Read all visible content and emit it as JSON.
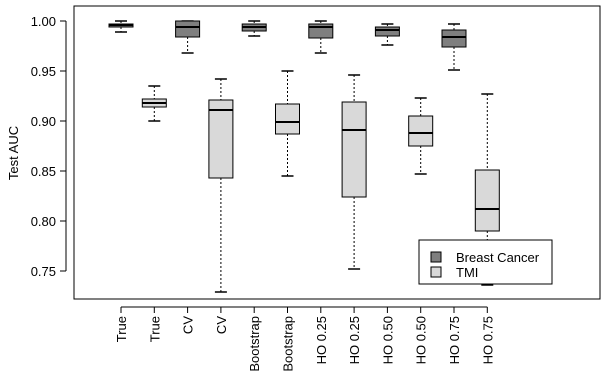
{
  "chart_data": {
    "type": "boxplot",
    "title": "",
    "xlabel": "",
    "ylabel": "Test AUC",
    "ylim": [
      0.71,
      1.01
    ],
    "yticks": [
      0.75,
      0.8,
      0.85,
      0.9,
      0.95,
      1.0
    ],
    "ytick_labels": [
      "0.75",
      "0.80",
      "0.85",
      "0.90",
      "0.95",
      "1.00"
    ],
    "grid": false,
    "legend": {
      "position": "bottom-right",
      "entries": [
        {
          "label": "Breast Cancer",
          "color": "#7f7f7f"
        },
        {
          "label": "TMI",
          "color": "#d9d9d9"
        }
      ]
    },
    "colors": {
      "breast_cancer": "#7f7f7f",
      "tmi": "#d9d9d9"
    },
    "boxes": [
      {
        "label": "True",
        "series": "breast_cancer",
        "min": 0.989,
        "q1": 0.994,
        "median": 0.996,
        "q3": 0.997,
        "max": 1.0
      },
      {
        "label": "True",
        "series": "tmi",
        "min": 0.9,
        "q1": 0.914,
        "median": 0.918,
        "q3": 0.922,
        "max": 0.935
      },
      {
        "label": "CV",
        "series": "breast_cancer",
        "min": 0.968,
        "q1": 0.984,
        "median": 0.994,
        "q3": 1.0,
        "max": 1.0
      },
      {
        "label": "CV",
        "series": "tmi",
        "min": 0.729,
        "q1": 0.843,
        "median": 0.911,
        "q3": 0.921,
        "max": 0.942
      },
      {
        "label": "Bootstrap",
        "series": "breast_cancer",
        "min": 0.985,
        "q1": 0.99,
        "median": 0.994,
        "q3": 0.997,
        "max": 1.0
      },
      {
        "label": "Bootstrap",
        "series": "tmi",
        "min": 0.845,
        "q1": 0.887,
        "median": 0.899,
        "q3": 0.917,
        "max": 0.95
      },
      {
        "label": "HO 0.25",
        "series": "breast_cancer",
        "min": 0.968,
        "q1": 0.983,
        "median": 0.994,
        "q3": 0.997,
        "max": 1.0
      },
      {
        "label": "HO 0.25",
        "series": "tmi",
        "min": 0.752,
        "q1": 0.824,
        "median": 0.891,
        "q3": 0.919,
        "max": 0.946
      },
      {
        "label": "HO 0.50",
        "series": "breast_cancer",
        "min": 0.976,
        "q1": 0.985,
        "median": 0.991,
        "q3": 0.994,
        "max": 0.997
      },
      {
        "label": "HO 0.50",
        "series": "tmi",
        "min": 0.847,
        "q1": 0.875,
        "median": 0.888,
        "q3": 0.905,
        "max": 0.923
      },
      {
        "label": "HO 0.75",
        "series": "breast_cancer",
        "min": 0.951,
        "q1": 0.974,
        "median": 0.984,
        "q3": 0.991,
        "max": 0.997
      },
      {
        "label": "HO 0.75",
        "series": "tmi",
        "min": 0.736,
        "q1": 0.79,
        "median": 0.812,
        "q3": 0.851,
        "max": 0.927
      }
    ]
  }
}
